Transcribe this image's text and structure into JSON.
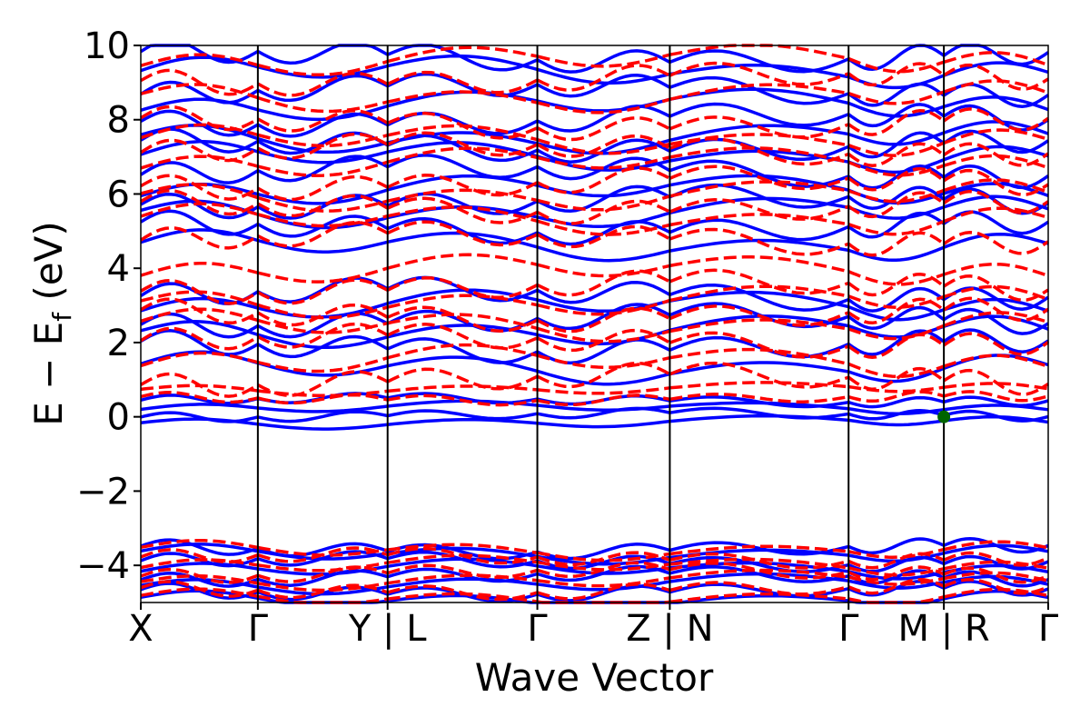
{
  "chart_data": {
    "type": "line",
    "xlabel": "Wave Vector",
    "ylabel_main": "E − E",
    "ylabel_sub": "f",
    "ylabel_unit": " (eV)",
    "ylim": [
      -5,
      10
    ],
    "yticks": [
      {
        "value": -4,
        "label": "−4"
      },
      {
        "value": -2,
        "label": "−2"
      },
      {
        "value": 0,
        "label": "0"
      },
      {
        "value": 2,
        "label": "2"
      },
      {
        "value": 4,
        "label": "4"
      },
      {
        "value": 6,
        "label": "6"
      },
      {
        "value": 8,
        "label": "8"
      },
      {
        "value": 10,
        "label": "10"
      }
    ],
    "kpath_ticks": [
      {
        "pos": 0.0,
        "label": "X"
      },
      {
        "pos": 0.129,
        "label": "Γ"
      },
      {
        "pos": 0.272,
        "label": "Y | L"
      },
      {
        "pos": 0.437,
        "label": "Γ"
      },
      {
        "pos": 0.583,
        "label": "Z | N"
      },
      {
        "pos": 0.78,
        "label": "Γ"
      },
      {
        "pos": 0.885,
        "label": "M | R"
      },
      {
        "pos": 1.0,
        "label": "Γ"
      }
    ],
    "segment_boundaries": [
      0.129,
      0.272,
      0.437,
      0.583,
      0.78,
      0.885
    ],
    "series": [
      {
        "style": "solid",
        "color": "#0000ff"
      },
      {
        "style": "dashed",
        "color": "#ff0000"
      }
    ],
    "marker": {
      "x": 0.885,
      "y": 0.0,
      "color": "#006400"
    },
    "grid": false
  }
}
